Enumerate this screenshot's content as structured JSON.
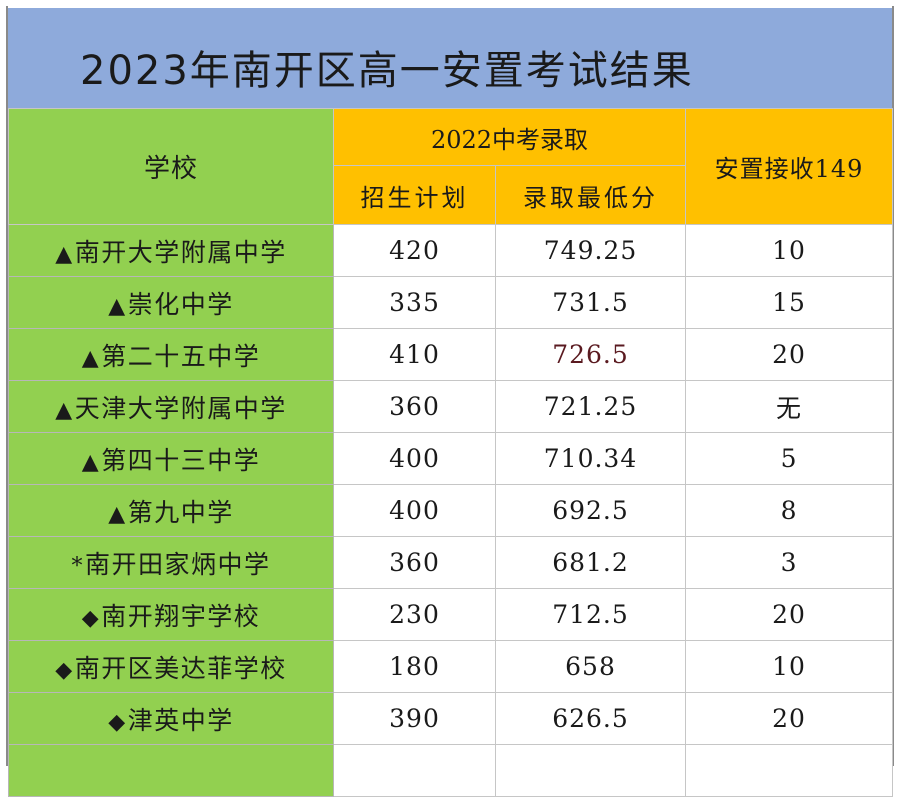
{
  "title": "2023年南开区高一安置考试结果",
  "headers": {
    "school": "学校",
    "group": "2022中考录取",
    "plan": "招生计划",
    "min_score": "录取最低分",
    "placement": "安置接收149"
  },
  "rows": [
    {
      "marker": "▲",
      "school": "南开大学附属中学",
      "plan": "420",
      "min_score": "749.25",
      "placement": "10"
    },
    {
      "marker": "▲",
      "school": "崇化中学",
      "plan": "335",
      "min_score": "731.5",
      "placement": "15"
    },
    {
      "marker": "▲",
      "school": "第二十五中学",
      "plan": "410",
      "min_score": "726.5",
      "placement": "20"
    },
    {
      "marker": "▲",
      "school": "天津大学附属中学",
      "plan": "360",
      "min_score": "721.25",
      "placement": "无"
    },
    {
      "marker": "▲",
      "school": "第四十三中学",
      "plan": "400",
      "min_score": "710.34",
      "placement": "5"
    },
    {
      "marker": "▲",
      "school": "第九中学",
      "plan": "400",
      "min_score": "692.5",
      "placement": "8"
    },
    {
      "marker": "*",
      "school": "南开田家炳中学",
      "plan": "360",
      "min_score": "681.2",
      "placement": "3"
    },
    {
      "marker": "◆",
      "school": "南开翔宇学校",
      "plan": "230",
      "min_score": "712.5",
      "placement": "20"
    },
    {
      "marker": "◆",
      "school": "南开区美达菲学校",
      "plan": "180",
      "min_score": "658",
      "placement": "10"
    },
    {
      "marker": "◆",
      "school": "津英中学",
      "plan": "390",
      "min_score": "626.5",
      "placement": "20"
    }
  ],
  "colors": {
    "title_bg": "#8eaadb",
    "school_bg": "#92d050",
    "header_bg": "#ffc000"
  }
}
